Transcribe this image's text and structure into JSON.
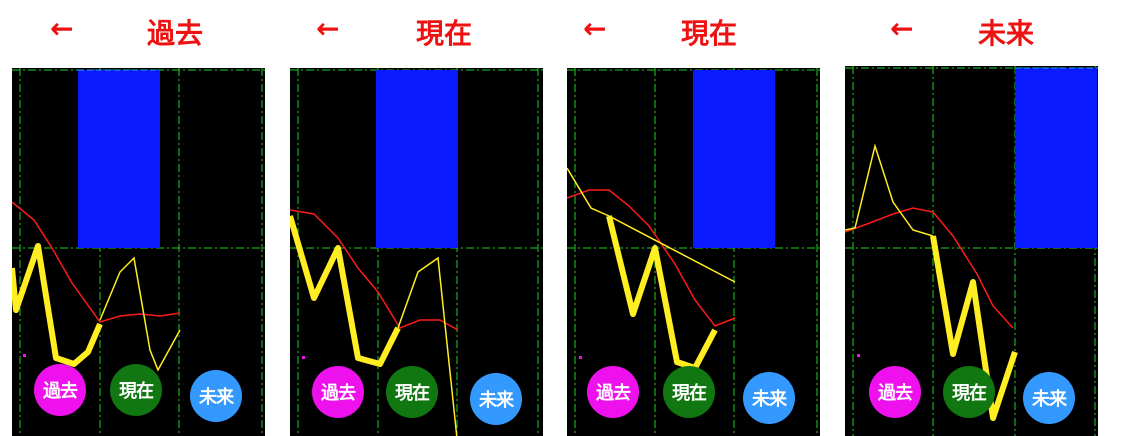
{
  "colors": {
    "header_text": "#ee1111",
    "panel_bg": "#000000",
    "grid": "#22cc22",
    "blue_block": "#0a1aff",
    "blue_dash": "#22aaff",
    "red_line": "#ff1a1a",
    "yellow_line": "#ffee22",
    "past_button": "#ee11ee",
    "present_button": "#117711",
    "future_button": "#3399ff"
  },
  "headers": [
    {
      "arrow": "←",
      "title": "過去"
    },
    {
      "arrow": "←",
      "title": "現在"
    },
    {
      "arrow": "←",
      "title": "現在"
    },
    {
      "arrow": "←",
      "title": "未来"
    }
  ],
  "buttons": {
    "past": "過去",
    "present": "現在",
    "future": "未来"
  }
}
